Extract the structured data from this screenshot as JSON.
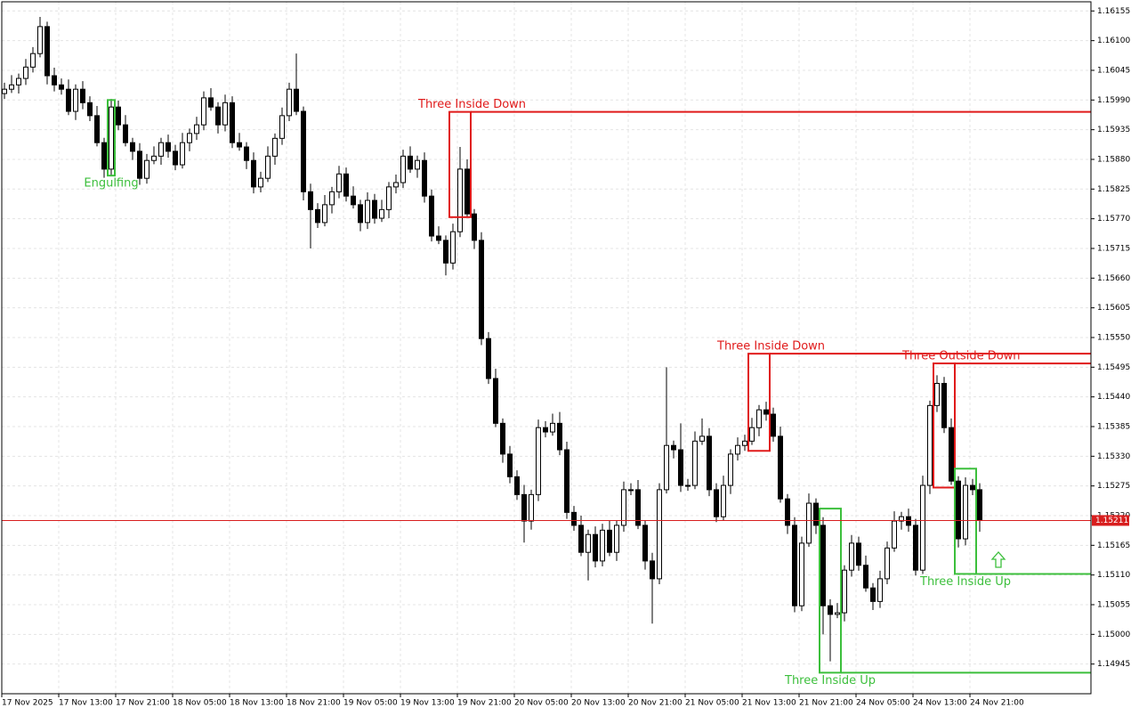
{
  "chart_data": {
    "type": "candlestick",
    "open": [
      1.16002,
      1.1601,
      1.16018,
      1.1603,
      1.16051,
      1.16076,
      1.16126,
      1.16035,
      1.16018,
      1.1601,
      1.15969,
      1.1601,
      1.15985,
      1.15961,
      1.15911,
      1.15862,
      1.15977,
      1.15944,
      1.15911,
      1.15895,
      1.15845,
      1.15878,
      1.15886,
      1.15911,
      1.15895,
      1.1587,
      1.15911,
      1.15928,
      1.15944,
      1.15994,
      1.15977,
      1.15944,
      1.15985,
      1.15911,
      1.15903,
      1.15878,
      1.15829,
      1.15845,
      1.15886,
      1.15919,
      1.15961,
      1.1601,
      1.15969,
      1.1582,
      1.15787,
      1.15763,
      1.15796,
      1.1582,
      1.15853,
      1.15812,
      1.15796,
      1.15763,
      1.15804,
      1.15771,
      1.15787,
      1.15829,
      1.15837,
      1.15886,
      1.15862,
      1.15878,
      1.15812,
      1.15738,
      1.1573,
      1.15688,
      1.15746,
      1.15862,
      1.15779,
      1.1573,
      1.15548,
      1.15474,
      1.15391,
      1.15334,
      1.15292,
      1.15259,
      1.1521,
      1.15259,
      1.15383,
      1.15375,
      1.15391,
      1.15342,
      1.15226,
      1.15202,
      1.15152,
      1.15185,
      1.15136,
      1.15193,
      1.15152,
      1.15202,
      1.15268,
      1.15268,
      1.15202,
      1.15136,
      1.15103,
      1.15268,
      1.1535,
      1.15342,
      1.15276,
      1.15276,
      1.15358,
      1.15367,
      1.15268,
      1.15218,
      1.15276,
      1.15334,
      1.1535,
      1.15358,
      1.15383,
      1.15416,
      1.15408,
      1.15367,
      1.15251,
      1.15202,
      1.15053,
      1.15169,
      1.15243,
      1.15202,
      1.15053,
      1.15037,
      1.1504,
      1.15119,
      1.15169,
      1.15128,
      1.15086,
      1.15061,
      1.15103,
      1.1516,
      1.1521,
      1.15218,
      1.15202,
      1.15119,
      1.15276,
      1.15424,
      1.15465,
      1.15383,
      1.15284,
      1.15177,
      1.15276,
      1.15268
    ],
    "high": [
      1.16022,
      1.16036,
      1.16039,
      1.16066,
      1.16088,
      1.16144,
      1.16135,
      1.1605,
      1.1603,
      1.16028,
      1.16019,
      1.16025,
      1.15997,
      1.15979,
      1.1592,
      1.15992,
      1.15989,
      1.15962,
      1.1592,
      1.1591,
      1.1589,
      1.15904,
      1.1592,
      1.15926,
      1.15907,
      1.15929,
      1.15937,
      1.15959,
      1.16006,
      1.16012,
      1.15986,
      1.16,
      1.15997,
      1.15929,
      1.15912,
      1.15893,
      1.15857,
      1.15904,
      1.15928,
      1.15976,
      1.16022,
      1.16076,
      1.15978,
      1.15835,
      1.15799,
      1.15814,
      1.15829,
      1.15868,
      1.15865,
      1.1583,
      1.15805,
      1.15819,
      1.15816,
      1.15805,
      1.15838,
      1.15852,
      1.15898,
      1.15904,
      1.15887,
      1.15893,
      1.15824,
      1.15756,
      1.15739,
      1.15761,
      1.15903,
      1.1588,
      1.15788,
      1.15745,
      1.1556,
      1.15492,
      1.154,
      1.15349,
      1.15304,
      1.15277,
      1.15268,
      1.15398,
      1.15395,
      1.15409,
      1.15412,
      1.15357,
      1.15238,
      1.1522,
      1.15194,
      1.152,
      1.15205,
      1.15211,
      1.15211,
      1.15283,
      1.1528,
      1.15286,
      1.15211,
      1.15151,
      1.1528,
      1.15495,
      1.15359,
      1.15391,
      1.15288,
      1.15376,
      1.154,
      1.15382,
      1.1528,
      1.15294,
      1.15343,
      1.15365,
      1.1537,
      1.15401,
      1.15425,
      1.15431,
      1.1542,
      1.15385,
      1.1526,
      1.15217,
      1.15181,
      1.15261,
      1.15252,
      1.15217,
      1.15065,
      1.15058,
      1.15128,
      1.15184,
      1.15181,
      1.15146,
      1.15095,
      1.15118,
      1.15172,
      1.15228,
      1.15227,
      1.15233,
      1.15214,
      1.15294,
      1.15433,
      1.1548,
      1.15477,
      1.154,
      1.15293,
      1.15291,
      1.15288,
      1.1528
    ],
    "low": [
      1.15992,
      1.16003,
      1.16002,
      1.16018,
      1.16041,
      1.16069,
      1.16019,
      1.16006,
      1.16,
      1.15962,
      1.15953,
      1.15973,
      1.15951,
      1.15904,
      1.15846,
      1.1585,
      1.15934,
      1.15904,
      1.15879,
      1.15833,
      1.15835,
      1.15871,
      1.1587,
      1.15883,
      1.1586,
      1.15863,
      1.15895,
      1.15916,
      1.15934,
      1.1597,
      1.15928,
      1.15932,
      1.15901,
      1.15896,
      1.15862,
      1.15817,
      1.15819,
      1.15838,
      1.1587,
      1.15907,
      1.15951,
      1.15962,
      1.15804,
      1.15715,
      1.15753,
      1.15756,
      1.1578,
      1.15808,
      1.15802,
      1.15789,
      1.15747,
      1.15751,
      1.15761,
      1.15764,
      1.15771,
      1.15817,
      1.15827,
      1.15855,
      1.15846,
      1.158,
      1.15728,
      1.15723,
      1.15665,
      1.15676,
      1.15736,
      1.15772,
      1.15714,
      1.15536,
      1.15464,
      1.15384,
      1.15318,
      1.1528,
      1.15249,
      1.1517,
      1.15194,
      1.15247,
      1.15365,
      1.15368,
      1.15332,
      1.15214,
      1.15192,
      1.15145,
      1.151,
      1.15124,
      1.15126,
      1.15145,
      1.15136,
      1.1519,
      1.15258,
      1.15195,
      1.1512,
      1.1502,
      1.15093,
      1.15261,
      1.15326,
      1.15264,
      1.15266,
      1.15269,
      1.15351,
      1.15256,
      1.15208,
      1.15211,
      1.1526,
      1.15322,
      1.1534,
      1.15351,
      1.15367,
      1.15396,
      1.15357,
      1.15244,
      1.15186,
      1.15041,
      1.15043,
      1.15162,
      1.15186,
      1.15,
      1.1495,
      1.1503,
      1.15024,
      1.15107,
      1.15118,
      1.15079,
      1.15045,
      1.15049,
      1.15093,
      1.15153,
      1.15194,
      1.1519,
      1.15109,
      1.15112,
      1.1526,
      1.15412,
      1.15373,
      1.15277,
      1.15161,
      1.15165,
      1.15258,
      1.1519
    ],
    "close": [
      1.1601,
      1.16018,
      1.1603,
      1.16051,
      1.16076,
      1.16126,
      1.16035,
      1.16018,
      1.1601,
      1.15969,
      1.1601,
      1.15985,
      1.15961,
      1.15911,
      1.15862,
      1.15977,
      1.15944,
      1.15911,
      1.15895,
      1.15845,
      1.15878,
      1.15886,
      1.15911,
      1.15895,
      1.1587,
      1.15911,
      1.15928,
      1.15944,
      1.15994,
      1.15977,
      1.15944,
      1.15985,
      1.15911,
      1.15903,
      1.15878,
      1.15829,
      1.15845,
      1.15886,
      1.15919,
      1.15961,
      1.1601,
      1.15969,
      1.1582,
      1.15787,
      1.15763,
      1.15796,
      1.1582,
      1.15853,
      1.15812,
      1.15796,
      1.15763,
      1.15804,
      1.15771,
      1.15787,
      1.15829,
      1.15837,
      1.15886,
      1.15862,
      1.15878,
      1.15812,
      1.15738,
      1.1573,
      1.15688,
      1.15746,
      1.15862,
      1.15779,
      1.1573,
      1.15548,
      1.15474,
      1.15391,
      1.15334,
      1.15292,
      1.15259,
      1.1521,
      1.15259,
      1.15383,
      1.15375,
      1.15391,
      1.15342,
      1.15226,
      1.15202,
      1.15152,
      1.15185,
      1.15136,
      1.15193,
      1.15152,
      1.15202,
      1.15268,
      1.15268,
      1.15202,
      1.15136,
      1.15103,
      1.15268,
      1.1535,
      1.15342,
      1.15276,
      1.15276,
      1.15358,
      1.15367,
      1.15268,
      1.15218,
      1.15276,
      1.15334,
      1.1535,
      1.15358,
      1.15383,
      1.15416,
      1.15408,
      1.15367,
      1.15251,
      1.15202,
      1.15053,
      1.15169,
      1.15243,
      1.15202,
      1.15053,
      1.15037,
      1.1504,
      1.15119,
      1.15169,
      1.15128,
      1.15086,
      1.15061,
      1.15103,
      1.1516,
      1.1521,
      1.15218,
      1.15202,
      1.15119,
      1.15276,
      1.15424,
      1.15465,
      1.15383,
      1.15284,
      1.15177,
      1.15276,
      1.15268,
      1.15211
    ],
    "xlim": [
      -0.375,
      152.625
    ],
    "xticks": [
      {
        "value": 0,
        "label": "17 Nov 2025"
      },
      {
        "value": 8,
        "label": "17 Nov 13:00"
      },
      {
        "value": 16,
        "label": "17 Nov 21:00"
      },
      {
        "value": 24,
        "label": "18 Nov 05:00"
      },
      {
        "value": 32,
        "label": "18 Nov 13:00"
      },
      {
        "value": 40,
        "label": "18 Nov 21:00"
      },
      {
        "value": 48,
        "label": "19 Nov 05:00"
      },
      {
        "value": 56,
        "label": "19 Nov 13:00"
      },
      {
        "value": 64,
        "label": "19 Nov 21:00"
      },
      {
        "value": 72,
        "label": "20 Nov 05:00"
      },
      {
        "value": 80,
        "label": "20 Nov 13:00"
      },
      {
        "value": 88,
        "label": "20 Nov 21:00"
      },
      {
        "value": 96,
        "label": "21 Nov 05:00"
      },
      {
        "value": 104,
        "label": "21 Nov 13:00"
      },
      {
        "value": 112,
        "label": "21 Nov 21:00"
      },
      {
        "value": 120,
        "label": "24 Nov 05:00"
      },
      {
        "value": 128,
        "label": "24 Nov 13:00"
      },
      {
        "value": 136,
        "label": "24 Nov 21:00"
      }
    ],
    "ylim": [
      1.1489,
      1.16172
    ],
    "yticks": [
      {
        "value": 1.16155,
        "label": "1.16155"
      },
      {
        "value": 1.161,
        "label": "1.16100"
      },
      {
        "value": 1.16045,
        "label": "1.16045"
      },
      {
        "value": 1.1599,
        "label": "1.15990"
      },
      {
        "value": 1.15935,
        "label": "1.15935"
      },
      {
        "value": 1.1588,
        "label": "1.15880"
      },
      {
        "value": 1.15825,
        "label": "1.15825"
      },
      {
        "value": 1.1577,
        "label": "1.15770"
      },
      {
        "value": 1.15715,
        "label": "1.15715"
      },
      {
        "value": 1.1566,
        "label": "1.15660"
      },
      {
        "value": 1.15605,
        "label": "1.15605"
      },
      {
        "value": 1.1555,
        "label": "1.15550"
      },
      {
        "value": 1.15495,
        "label": "1.15495"
      },
      {
        "value": 1.1544,
        "label": "1.15440"
      },
      {
        "value": 1.15385,
        "label": "1.15385"
      },
      {
        "value": 1.1533,
        "label": "1.15330"
      },
      {
        "value": 1.15275,
        "label": "1.15275"
      },
      {
        "value": 1.1522,
        "label": "1.15220"
      },
      {
        "value": 1.15165,
        "label": "1.15165"
      },
      {
        "value": 1.1511,
        "label": "1.15110"
      },
      {
        "value": 1.15055,
        "label": "1.15055"
      },
      {
        "value": 1.15,
        "label": "1.15000"
      },
      {
        "value": 1.14945,
        "label": "1.14945"
      }
    ],
    "grid": true,
    "current_price": 1.15211,
    "current_price_label": "1.15211",
    "current_price_color": "#d81e1e",
    "patterns": [
      {
        "label": "Engulfing",
        "color": "#3cbf3c",
        "from": 15,
        "to": 15,
        "top": 1.1599,
        "bottom": 1.1585
      },
      {
        "label": "Three Inside Down",
        "color": "#e01a1a",
        "from": 63,
        "to": 65,
        "top": 1.15968,
        "bottom": 1.15773,
        "level": 1.15968
      },
      {
        "label": "Three Inside Down",
        "color": "#e01a1a",
        "from": 105,
        "to": 107,
        "top": 1.1552,
        "bottom": 1.1534,
        "level": 1.1552
      },
      {
        "label": "Three Outside Down",
        "color": "#e01a1a",
        "from": 131,
        "to": 133,
        "top": 1.15502,
        "bottom": 1.15272,
        "level": 1.15502
      },
      {
        "label": "Three Inside Up",
        "color": "#3cbf3c",
        "from": 115,
        "to": 117,
        "top": 1.15233,
        "bottom": 1.14929,
        "level": 1.14929
      },
      {
        "label": "Three Inside Up",
        "color": "#3cbf3c",
        "from": 134,
        "to": 136,
        "top": 1.15307,
        "bottom": 1.15112,
        "level": 1.15112
      }
    ]
  }
}
